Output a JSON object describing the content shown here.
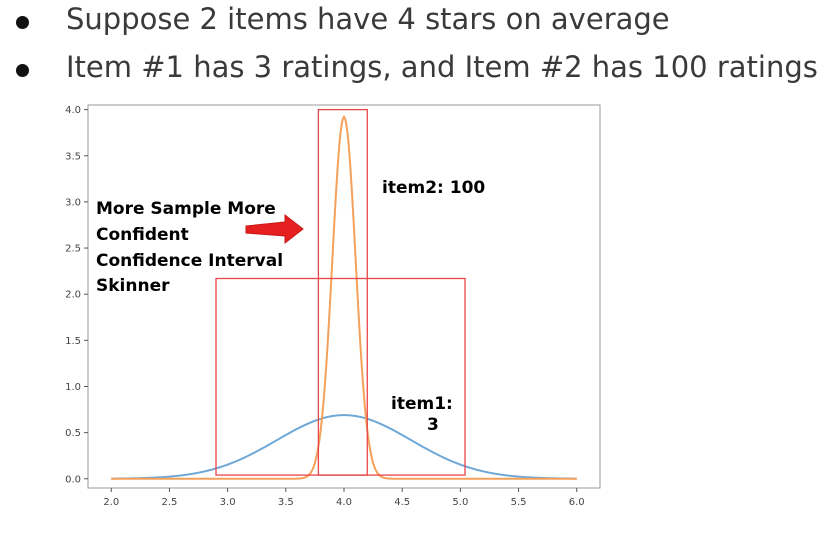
{
  "bullets": [
    "Suppose 2 items have 4 stars on average",
    "Item #1 has 3 ratings, and Item #2 has 100 ratings"
  ],
  "colors": {
    "bullet_text": "#3a3a3a",
    "item1_curve": "#6fa8d6",
    "item2_curve": "#f5a05a",
    "boxes": "#e8454a",
    "arrow": "#e62020",
    "axes": "#999999"
  },
  "chart_data": {
    "type": "line",
    "title": "",
    "xlabel": "",
    "ylabel": "",
    "xlim": [
      1.8,
      6.2
    ],
    "ylim": [
      -0.1,
      4.05
    ],
    "grid": false,
    "x_ticks": [
      "2.0",
      "2.5",
      "3.0",
      "3.5",
      "4.0",
      "4.5",
      "5.0",
      "5.5",
      "6.0"
    ],
    "y_ticks": [
      "0.0",
      "0.5",
      "1.0",
      "1.5",
      "2.0",
      "2.5",
      "3.0",
      "3.5",
      "4.0"
    ],
    "series": [
      {
        "distribution": "normal",
        "mean": 4.0,
        "peak": 0.69,
        "sigma": 0.577,
        "color": "#6fa8d6"
      },
      {
        "distribution": "normal",
        "mean": 4.0,
        "peak": 3.92,
        "sigma": 0.1,
        "color": "#f5a05a"
      }
    ],
    "boxes": [
      {
        "x": [
          3.78,
          4.2
        ],
        "y": [
          0.04,
          4.0
        ],
        "color": "#e8454a"
      },
      {
        "x": [
          2.9,
          5.04
        ],
        "y": [
          0.04,
          2.17
        ],
        "color": "#e8454a"
      }
    ],
    "annotations": {
      "item2": "item2: 100",
      "item1_line1": "item1:",
      "item1_line2": "3",
      "note_lines": [
        "More Sample More",
        "Confident",
        "Confidence Interval",
        "Skinner"
      ]
    }
  }
}
